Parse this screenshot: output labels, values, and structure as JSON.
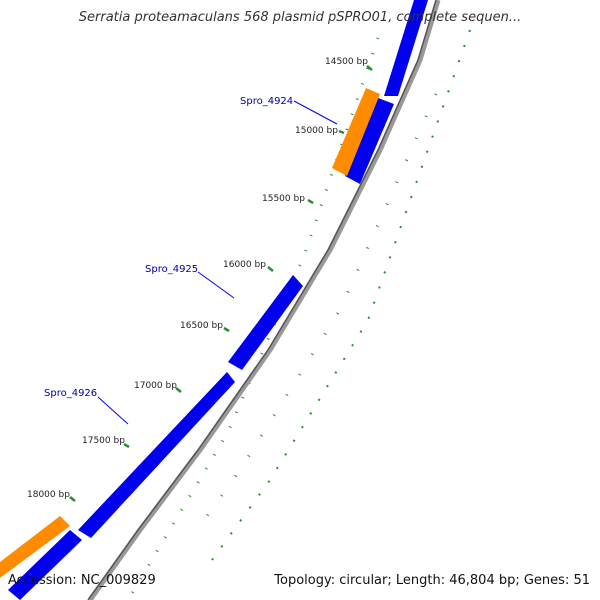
{
  "title": "Serratia proteamaculans 568 plasmid pSPRO01, complete sequen...",
  "accession": "Accession: NC_009829",
  "summary": "Topology: circular; Length: 46,804 bp; Genes: 51",
  "colors": {
    "forward_cds": "#0000ee",
    "reverse_cds": "#ff8c00",
    "backbone": "#888888",
    "ticks": "#2e8b2e",
    "gene_label": "#0000aa"
  },
  "scale_labels": [
    {
      "bp": 14500,
      "label": "14500 bp"
    },
    {
      "bp": 15000,
      "label": "15000 bp"
    },
    {
      "bp": 15500,
      "label": "15500 bp"
    },
    {
      "bp": 16000,
      "label": "16000 bp"
    },
    {
      "bp": 16500,
      "label": "16500 bp"
    },
    {
      "bp": 17000,
      "label": "17000 bp"
    },
    {
      "bp": 17500,
      "label": "17500 bp"
    },
    {
      "bp": 18000,
      "label": "18000 bp"
    }
  ],
  "gene_labels": [
    {
      "label": "Spro_4924"
    },
    {
      "label": "Spro_4925"
    },
    {
      "label": "Spro_4926"
    }
  ]
}
